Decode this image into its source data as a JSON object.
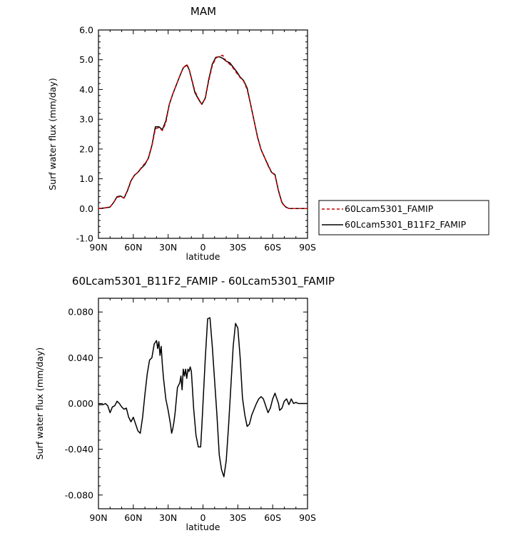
{
  "chart_data": [
    {
      "type": "line",
      "title": "MAM",
      "xlabel": "latitude",
      "ylabel": "Surf water flux (mm/day)",
      "xlim": [
        -90,
        90
      ],
      "ylim": [
        -1.0,
        6.0
      ],
      "x_ticks": [
        -90,
        -60,
        -30,
        0,
        30,
        60,
        90
      ],
      "x_tick_labels": [
        "90N",
        "60N",
        "30N",
        "0",
        "30S",
        "60S",
        "90S"
      ],
      "y_ticks": [
        -1.0,
        0.0,
        1.0,
        2.0,
        3.0,
        4.0,
        5.0,
        6.0
      ],
      "y_tick_labels": [
        "-1.0",
        "0.0",
        "1.0",
        "2.0",
        "3.0",
        "4.0",
        "5.0",
        "6.0"
      ],
      "grid": false,
      "legend": "right",
      "series": [
        {
          "name": "60Lcam5301_FAMIP",
          "color": "#cc0000",
          "style": "dashed",
          "x": [
            -90,
            -85,
            -80,
            -77,
            -74,
            -71,
            -68,
            -65,
            -62,
            -59,
            -56,
            -53,
            -50,
            -47,
            -44,
            -41,
            -38,
            -35,
            -32,
            -29,
            -26,
            -23,
            -20,
            -17,
            -14,
            -12,
            -10,
            -7,
            -4,
            -1,
            2,
            5,
            8,
            11,
            14,
            17,
            20,
            23,
            26,
            29,
            32,
            35,
            38,
            41,
            44,
            47,
            50,
            53,
            56,
            59,
            62,
            65,
            68,
            71,
            74,
            77,
            80,
            85,
            90
          ],
          "y": [
            0.0,
            0.02,
            0.06,
            0.2,
            0.38,
            0.4,
            0.36,
            0.62,
            0.95,
            1.12,
            1.22,
            1.38,
            1.52,
            1.68,
            2.1,
            2.68,
            2.72,
            2.62,
            2.88,
            3.5,
            3.85,
            4.15,
            4.45,
            4.72,
            4.85,
            4.7,
            4.4,
            3.95,
            3.7,
            3.5,
            3.7,
            4.3,
            4.8,
            5.05,
            5.12,
            5.15,
            4.95,
            4.85,
            4.72,
            4.55,
            4.4,
            4.28,
            4.0,
            3.5,
            2.95,
            2.38,
            1.98,
            1.72,
            1.48,
            1.22,
            1.12,
            0.58,
            0.18,
            0.06,
            0.0,
            0.0,
            0.0,
            0.0,
            0.0
          ]
        },
        {
          "name": "60Lcam5301_B11F2_FAMIP",
          "color": "#000000",
          "style": "solid",
          "x": [
            -90,
            -85,
            -80,
            -77,
            -74,
            -71,
            -68,
            -65,
            -62,
            -59,
            -56,
            -53,
            -50,
            -47,
            -44,
            -41,
            -38,
            -35,
            -32,
            -29,
            -26,
            -23,
            -20,
            -17,
            -14,
            -12,
            -10,
            -7,
            -4,
            -1,
            2,
            5,
            8,
            11,
            14,
            17,
            20,
            23,
            26,
            29,
            32,
            35,
            38,
            41,
            44,
            47,
            50,
            53,
            56,
            59,
            62,
            65,
            68,
            71,
            74,
            77,
            80,
            85,
            90
          ],
          "y": [
            0.0,
            0.02,
            0.05,
            0.2,
            0.4,
            0.42,
            0.35,
            0.6,
            0.93,
            1.12,
            1.22,
            1.36,
            1.48,
            1.7,
            2.12,
            2.75,
            2.75,
            2.65,
            2.95,
            3.5,
            3.85,
            4.15,
            4.45,
            4.73,
            4.82,
            4.68,
            4.38,
            3.9,
            3.68,
            3.5,
            3.72,
            4.35,
            4.85,
            5.08,
            5.1,
            5.05,
            4.95,
            4.9,
            4.75,
            4.6,
            4.42,
            4.3,
            4.05,
            3.5,
            2.95,
            2.4,
            1.98,
            1.72,
            1.45,
            1.22,
            1.14,
            0.6,
            0.2,
            0.06,
            0.0,
            0.0,
            0.0,
            0.0,
            0.0
          ]
        }
      ]
    },
    {
      "type": "line",
      "title": "60Lcam5301_B11F2_FAMIP - 60Lcam5301_FAMIP",
      "xlabel": "latitude",
      "ylabel": "Surf water flux (mm/day)",
      "xlim": [
        -90,
        90
      ],
      "ylim": [
        -0.092,
        0.092
      ],
      "x_ticks": [
        -90,
        -60,
        -30,
        0,
        30,
        60,
        90
      ],
      "x_tick_labels": [
        "90N",
        "60N",
        "30N",
        "0",
        "30S",
        "60S",
        "90S"
      ],
      "y_ticks": [
        -0.08,
        -0.04,
        0.0,
        0.04,
        0.08
      ],
      "y_tick_labels": [
        "-0.080",
        "-0.040",
        "0.000",
        "0.040",
        "0.080"
      ],
      "grid": false,
      "series": [
        {
          "name": "60Lcam5301_B11F2_FAMIP - 60Lcam5301_FAMIP",
          "color": "#000000",
          "style": "solid",
          "x": [
            -90,
            -86,
            -84,
            -82,
            -80,
            -78,
            -76,
            -74,
            -72,
            -70,
            -68,
            -66,
            -64,
            -62,
            -60,
            -58,
            -56,
            -54,
            -52,
            -50,
            -48,
            -46,
            -44,
            -42,
            -40,
            -39,
            -38,
            -37,
            -36,
            -35,
            -34,
            -32,
            -30,
            -28,
            -27,
            -26,
            -25,
            -24,
            -22,
            -20,
            -19,
            -18,
            -17,
            -16,
            -15,
            -14,
            -13,
            -12,
            -11,
            -10,
            -8,
            -6,
            -4,
            -2,
            -1,
            0,
            2,
            4,
            6,
            8,
            10,
            12,
            14,
            16,
            18,
            20,
            22,
            24,
            26,
            28,
            30,
            32,
            34,
            36,
            38,
            40,
            42,
            44,
            46,
            48,
            50,
            52,
            54,
            56,
            58,
            60,
            62,
            64,
            65,
            66,
            68,
            70,
            72,
            74,
            76,
            78,
            80,
            82,
            84,
            86,
            88,
            90
          ],
          "y": [
            -0.001,
            -0.001,
            0.0,
            -0.002,
            -0.008,
            -0.003,
            -0.002,
            0.002,
            0.0,
            -0.003,
            -0.005,
            -0.004,
            -0.012,
            -0.016,
            -0.012,
            -0.018,
            -0.024,
            -0.026,
            -0.012,
            0.008,
            0.026,
            0.038,
            0.04,
            0.052,
            0.055,
            0.048,
            0.054,
            0.042,
            0.05,
            0.034,
            0.022,
            0.004,
            -0.006,
            -0.018,
            -0.026,
            -0.022,
            -0.016,
            -0.008,
            0.014,
            0.018,
            0.024,
            0.012,
            0.03,
            0.024,
            0.03,
            0.022,
            0.03,
            0.028,
            0.032,
            0.028,
            -0.005,
            -0.028,
            -0.038,
            -0.038,
            -0.02,
            0.0,
            0.04,
            0.074,
            0.075,
            0.05,
            0.02,
            -0.01,
            -0.045,
            -0.058,
            -0.064,
            -0.05,
            -0.02,
            0.015,
            0.05,
            0.07,
            0.066,
            0.04,
            0.005,
            -0.01,
            -0.02,
            -0.018,
            -0.01,
            -0.005,
            0.0,
            0.004,
            0.006,
            0.004,
            -0.002,
            -0.008,
            -0.004,
            0.004,
            0.009,
            0.003,
            0.0,
            -0.006,
            -0.004,
            0.002,
            0.004,
            -0.001,
            0.004,
            0.0,
            0.001,
            0.0,
            0.0,
            0.0,
            0.0,
            0.0
          ]
        }
      ]
    }
  ]
}
